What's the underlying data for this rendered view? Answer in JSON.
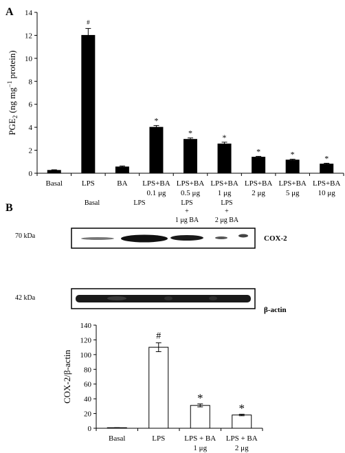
{
  "panel_a": {
    "letter": "A",
    "ylabel_main": "PGE",
    "ylabel_sub": "2",
    "ylabel_unit_pre": " (ng mg",
    "ylabel_sup": "−1",
    "ylabel_unit_post": " protein)"
  },
  "panel_b": {
    "letter": "B",
    "blot_headers": [
      {
        "line1": "Basal",
        "line2": "",
        "line3": ""
      },
      {
        "line1": "LPS",
        "line2": "",
        "line3": ""
      },
      {
        "line1": "LPS",
        "line2": "+",
        "line3": "1 μg BA"
      },
      {
        "line1": "LPS",
        "line2": "+",
        "line3": "2 μg BA"
      }
    ],
    "blot_rows": [
      {
        "mw": "70 kDa",
        "protein": "COX-2"
      },
      {
        "mw": "42 kDa",
        "protein": "β-actin"
      }
    ]
  },
  "chart_data": [
    {
      "type": "bar",
      "categories": [
        [
          "Basal",
          ""
        ],
        [
          "LPS",
          ""
        ],
        [
          "BA",
          ""
        ],
        [
          "LPS+BA",
          "0.1 μg"
        ],
        [
          "LPS+BA",
          "0.5 μg"
        ],
        [
          "LPS+BA",
          "1 μg"
        ],
        [
          "LPS+BA",
          "2 μg"
        ],
        [
          "LPS+BA",
          "5 μg"
        ],
        [
          "LPS+BA",
          "10 μg"
        ]
      ],
      "values": [
        0.25,
        12.0,
        0.55,
        4.0,
        2.95,
        2.55,
        1.4,
        1.15,
        0.8
      ],
      "errors": [
        0.05,
        0.6,
        0.08,
        0.15,
        0.12,
        0.15,
        0.07,
        0.07,
        0.07
      ],
      "annotations": [
        "",
        "#",
        "",
        "*",
        "*",
        "*",
        "*",
        "*",
        "*"
      ],
      "ylim": [
        0,
        14
      ],
      "yticks": [
        0,
        2,
        4,
        6,
        8,
        10,
        12,
        14
      ],
      "grid": false,
      "bar_color": "#000000"
    },
    {
      "type": "bar",
      "categories": [
        [
          "Basal",
          ""
        ],
        [
          "LPS",
          ""
        ],
        [
          "LPS + BA",
          "1 μg"
        ],
        [
          "LPS + BA",
          "2 μg"
        ]
      ],
      "values": [
        0.5,
        110,
        31,
        18
      ],
      "errors": [
        0.3,
        6,
        2,
        1
      ],
      "annotations": [
        "",
        "#",
        "*",
        "*"
      ],
      "ylabel": "COX-2/β-actin",
      "ylim": [
        0,
        140
      ],
      "yticks": [
        0,
        20,
        40,
        60,
        80,
        100,
        120,
        140
      ],
      "grid": false,
      "bar_color": "#ffffff"
    }
  ]
}
